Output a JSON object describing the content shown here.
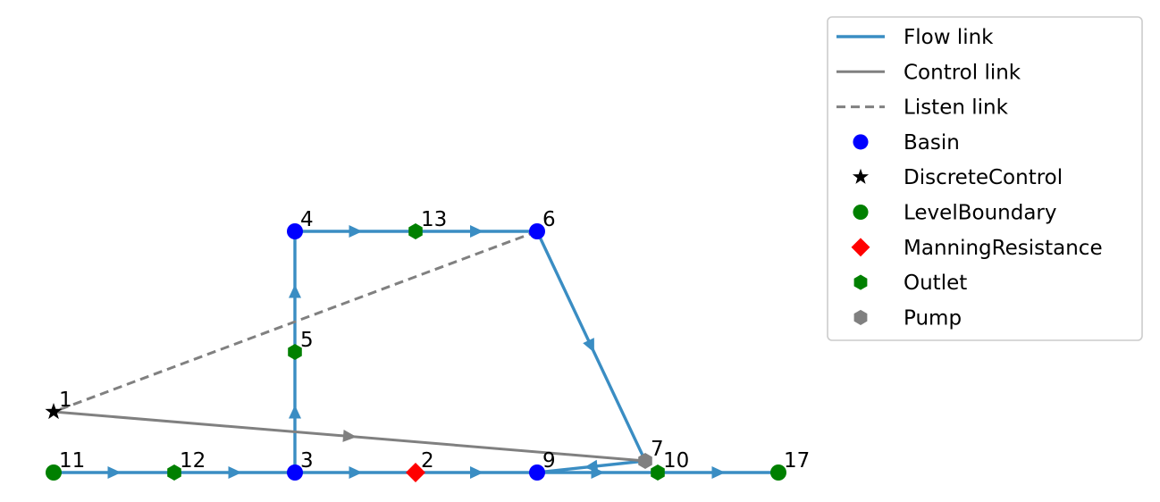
{
  "colors": {
    "flow": "#3a8dc3",
    "control": "#808080",
    "listen": "#808080",
    "basin": "#0000ff",
    "discrete_control": "#000000",
    "level_boundary": "#008000",
    "manning_resistance": "#ff0000",
    "outlet": "#008000",
    "pump": "#808080"
  },
  "nodes": [
    {
      "id": "1",
      "type": "DiscreteControl",
      "shape": "star-icon"
    },
    {
      "id": "2",
      "type": "ManningResistance",
      "shape": "diamond-icon"
    },
    {
      "id": "3",
      "type": "Basin",
      "shape": "circle-icon"
    },
    {
      "id": "4",
      "type": "Basin",
      "shape": "circle-icon"
    },
    {
      "id": "5",
      "type": "Outlet",
      "shape": "hexagon-icon"
    },
    {
      "id": "6",
      "type": "Basin",
      "shape": "circle-icon"
    },
    {
      "id": "7",
      "type": "Pump",
      "shape": "hexagon-icon"
    },
    {
      "id": "9",
      "type": "Basin",
      "shape": "circle-icon"
    },
    {
      "id": "10",
      "type": "Outlet",
      "shape": "hexagon-icon"
    },
    {
      "id": "11",
      "type": "LevelBoundary",
      "shape": "circle-icon"
    },
    {
      "id": "12",
      "type": "Outlet",
      "shape": "hexagon-icon"
    },
    {
      "id": "13",
      "type": "Outlet",
      "shape": "hexagon-icon"
    },
    {
      "id": "17",
      "type": "LevelBoundary",
      "shape": "circle-icon"
    }
  ],
  "links": [
    {
      "from": "11",
      "to": "12",
      "kind": "flow"
    },
    {
      "from": "12",
      "to": "3",
      "kind": "flow"
    },
    {
      "from": "3",
      "to": "2",
      "kind": "flow"
    },
    {
      "from": "2",
      "to": "9",
      "kind": "flow"
    },
    {
      "from": "9",
      "to": "10",
      "kind": "flow"
    },
    {
      "from": "10",
      "to": "17",
      "kind": "flow"
    },
    {
      "from": "3",
      "to": "5",
      "kind": "flow"
    },
    {
      "from": "5",
      "to": "4",
      "kind": "flow"
    },
    {
      "from": "4",
      "to": "13",
      "kind": "flow"
    },
    {
      "from": "13",
      "to": "6",
      "kind": "flow"
    },
    {
      "from": "6",
      "to": "7",
      "kind": "flow"
    },
    {
      "from": "7",
      "to": "9",
      "kind": "flow"
    },
    {
      "from": "1",
      "to": "7",
      "kind": "control"
    },
    {
      "from": "6",
      "to": "1",
      "kind": "listen"
    }
  ],
  "legend": {
    "items": [
      {
        "label": "Flow link",
        "marker": "solid-line-icon",
        "color_key": "flow"
      },
      {
        "label": "Control link",
        "marker": "solid-line-icon",
        "color_key": "control"
      },
      {
        "label": "Listen link",
        "marker": "dashed-line-icon",
        "color_key": "listen"
      },
      {
        "label": "Basin",
        "marker": "circle-icon",
        "color_key": "basin"
      },
      {
        "label": "DiscreteControl",
        "marker": "star-icon",
        "color_key": "discrete_control"
      },
      {
        "label": "LevelBoundary",
        "marker": "circle-icon",
        "color_key": "level_boundary"
      },
      {
        "label": "ManningResistance",
        "marker": "diamond-icon",
        "color_key": "manning_resistance"
      },
      {
        "label": "Outlet",
        "marker": "hexagon-icon",
        "color_key": "outlet"
      },
      {
        "label": "Pump",
        "marker": "hexagon-icon",
        "color_key": "pump"
      }
    ]
  }
}
